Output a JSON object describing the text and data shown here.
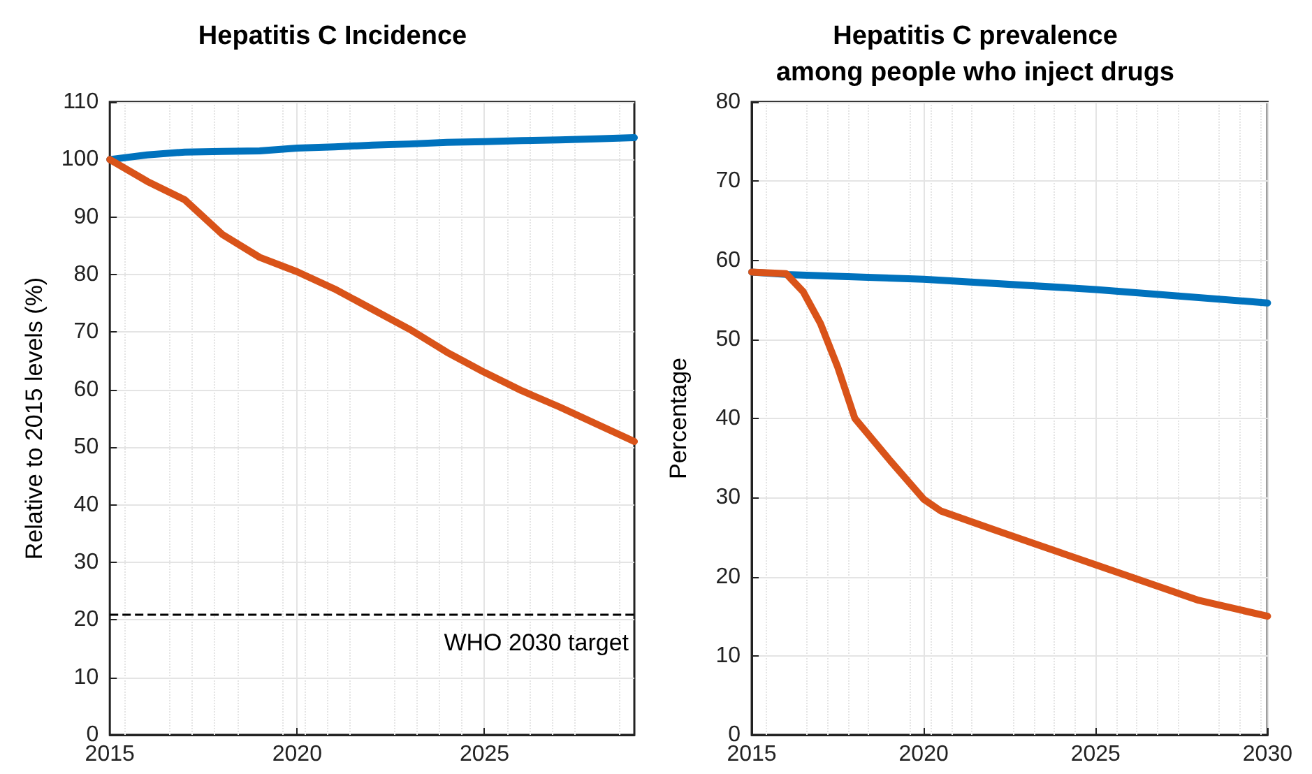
{
  "chart_data": [
    {
      "type": "line",
      "title": "Hepatitis C Incidence",
      "ylabel": "Relative to 2015 levels (%)",
      "x": [
        2015,
        2016,
        2017,
        2018,
        2019,
        2020,
        2021,
        2022,
        2023,
        2024,
        2025,
        2026,
        2027,
        2028,
        2029
      ],
      "series": [
        {
          "color": "#0072bd",
          "values": [
            100,
            100.8,
            101.3,
            101.4,
            101.5,
            102,
            102.2,
            102.5,
            102.7,
            103,
            103.1,
            103.3,
            103.4,
            103.6,
            103.8
          ]
        },
        {
          "color": "#d95319",
          "values": [
            100,
            96.2,
            93,
            87,
            83,
            80.5,
            77.5,
            74,
            70.5,
            66.5,
            63,
            59.8,
            57,
            54,
            51
          ]
        }
      ],
      "xlim": [
        2015,
        2029
      ],
      "xticks": [
        2015,
        2020,
        2025
      ],
      "ylim": [
        0,
        110
      ],
      "yticks": [
        0,
        10,
        20,
        30,
        40,
        50,
        60,
        70,
        80,
        90,
        100,
        110
      ],
      "ref_lines": [
        {
          "axis": "y",
          "value": 21,
          "label": "WHO 2030 target",
          "color": "#000000",
          "line_style": "dashed"
        }
      ],
      "grid": true,
      "marker": "none",
      "line_style": "solid"
    },
    {
      "type": "line",
      "title": "Hepatitis C prevalence\namong people who inject drugs",
      "ylabel": "Percentage",
      "series": [
        {
          "color": "#0072bd",
          "x": [
            2015,
            2016,
            2020,
            2025,
            2030
          ],
          "values": [
            58.5,
            58.2,
            57.6,
            56.3,
            54.6
          ]
        },
        {
          "color": "#d95319",
          "x": [
            2015,
            2016,
            2016.5,
            2017,
            2017.5,
            2018,
            2019,
            2020,
            2020.5,
            2022,
            2024,
            2025,
            2027,
            2028,
            2030
          ],
          "values": [
            58.5,
            58.3,
            56,
            52,
            46.5,
            40,
            34.8,
            29.8,
            28.3,
            26,
            23,
            21.5,
            18.5,
            17,
            15
          ]
        }
      ],
      "xlim": [
        2015,
        2030
      ],
      "xticks": [
        2015,
        2020,
        2025,
        2030
      ],
      "ylim": [
        0,
        80
      ],
      "yticks": [
        0,
        10,
        20,
        30,
        40,
        50,
        60,
        70,
        80
      ],
      "grid": true,
      "marker": "none",
      "line_style": "solid"
    }
  ]
}
